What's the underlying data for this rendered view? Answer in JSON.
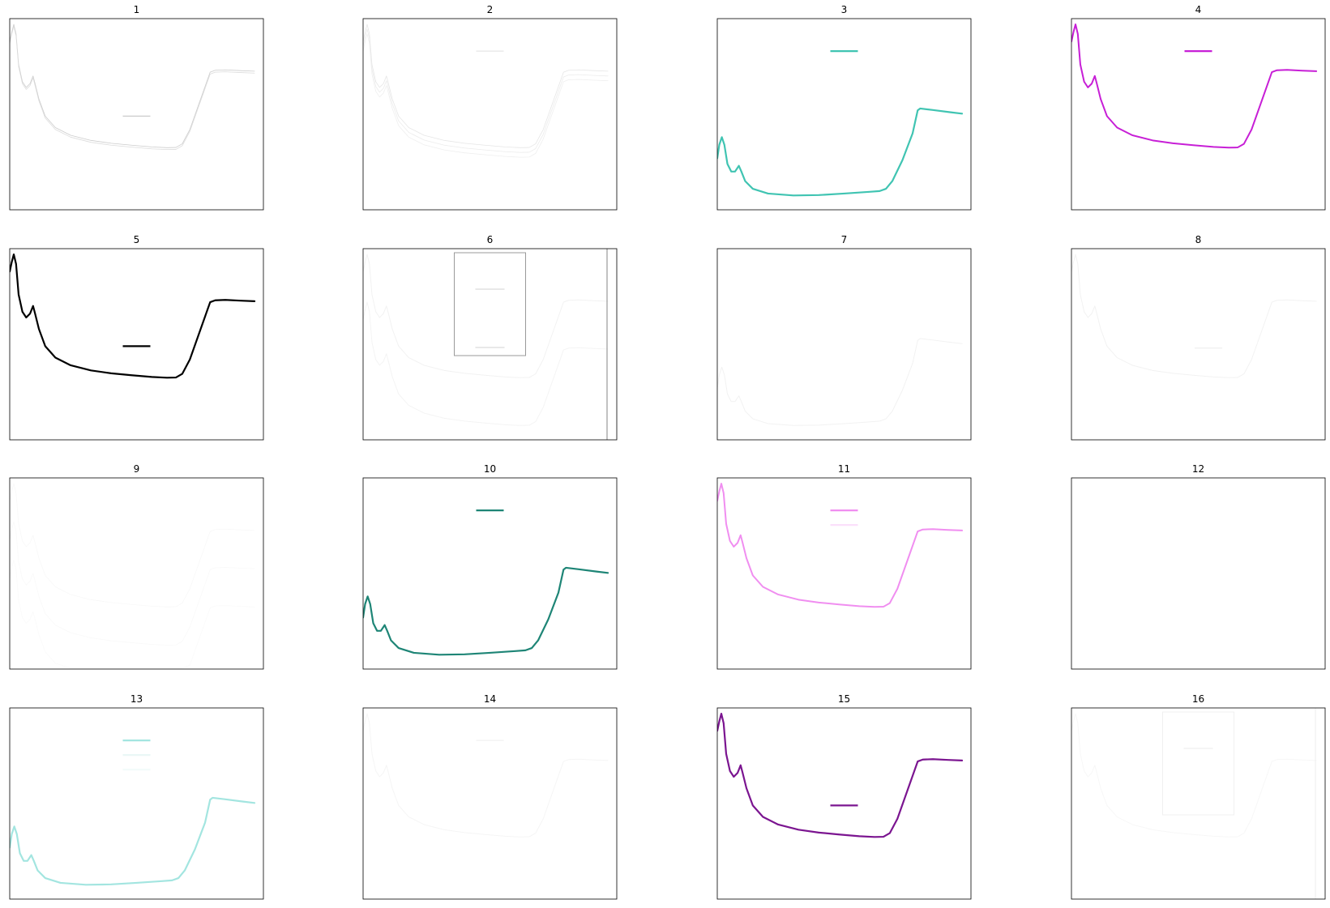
{
  "figure": {
    "layout": "4x4 grid of small-multiple line plots",
    "axes": {
      "ticks": "none",
      "tick_labels": "none"
    }
  },
  "chart_data": [
    {
      "type": "line",
      "title": "1",
      "shape": "A",
      "series": [
        {
          "color": "#cccccc",
          "width": 0.8,
          "offset": 0.0
        },
        {
          "color": "#dcdcdc",
          "width": 0.8,
          "offset": 0.01
        }
      ],
      "legend": {
        "visible": true,
        "position": "center",
        "entries": [
          {
            "color": "#cccccc"
          }
        ]
      }
    },
    {
      "type": "line",
      "title": "2",
      "shape": "A",
      "series": [
        {
          "color": "#e6e6e6",
          "width": 0.8,
          "offset": 0.0
        },
        {
          "color": "#ececec",
          "width": 0.8,
          "offset": 0.025
        },
        {
          "color": "#efefef",
          "width": 0.8,
          "offset": 0.05
        }
      ],
      "legend": {
        "visible": true,
        "position": "upper center",
        "entries": [
          {
            "color": "#e6e6e6"
          }
        ]
      }
    },
    {
      "type": "line",
      "title": "3",
      "shape": "B",
      "series": [
        {
          "color": "#40c4b2",
          "width": 2.2,
          "offset": 0.0
        }
      ],
      "legend": {
        "visible": true,
        "position": "upper center",
        "entries": [
          {
            "color": "#40c4b2"
          }
        ]
      }
    },
    {
      "type": "line",
      "title": "4",
      "shape": "A",
      "series": [
        {
          "color": "#c71fd6",
          "width": 2.0,
          "offset": 0.0
        }
      ],
      "legend": {
        "visible": true,
        "position": "upper center",
        "entries": [
          {
            "color": "#c71fd6"
          }
        ]
      }
    },
    {
      "type": "line",
      "title": "5",
      "shape": "A",
      "series": [
        {
          "color": "#000000",
          "width": 2.2,
          "offset": 0.0
        }
      ],
      "legend": {
        "visible": true,
        "position": "center",
        "entries": [
          {
            "color": "#000000"
          }
        ]
      }
    },
    {
      "type": "line",
      "title": "6",
      "shape": "A",
      "series": [
        {
          "color": "#f2f2f2",
          "width": 1.0,
          "offset": 0.0
        },
        {
          "color": "#f4f4f4",
          "width": 1.0,
          "offset": 0.25
        }
      ],
      "legend": {
        "visible": true,
        "position": "upper center",
        "framed": true,
        "entries": [
          {
            "color": "#e0e0e0"
          },
          {
            "color": "#e0e0e0"
          }
        ]
      },
      "vline": {
        "color": "#999999"
      }
    },
    {
      "type": "line",
      "title": "7",
      "shape": "B",
      "series": [
        {
          "color": "#f2f2f2",
          "width": 1.0,
          "offset": 0.0
        }
      ],
      "legend": {
        "visible": false,
        "entries": []
      }
    },
    {
      "type": "line",
      "title": "8",
      "shape": "A",
      "series": [
        {
          "color": "#f2f2f2",
          "width": 1.0,
          "offset": 0.0
        }
      ],
      "legend": {
        "visible": true,
        "position": "center right",
        "entries": [
          {
            "color": "#efefef"
          }
        ]
      }
    },
    {
      "type": "line",
      "title": "9",
      "shape": "A",
      "series": [
        {
          "color": "#f8f8f8",
          "width": 0.8,
          "offset": 0.0
        },
        {
          "color": "#f9f9f9",
          "width": 0.8,
          "offset": 0.2
        },
        {
          "color": "#fafafa",
          "width": 0.8,
          "offset": 0.4
        }
      ],
      "legend": {
        "visible": false,
        "entries": []
      }
    },
    {
      "type": "line",
      "title": "10",
      "shape": "B",
      "series": [
        {
          "color": "#1e8576",
          "width": 2.2,
          "offset": 0.0
        }
      ],
      "legend": {
        "visible": true,
        "position": "upper center",
        "entries": [
          {
            "color": "#1e8576"
          }
        ]
      }
    },
    {
      "type": "line",
      "title": "11",
      "shape": "A",
      "series": [
        {
          "color": "#f08ef0",
          "width": 2.0,
          "offset": 0.0
        }
      ],
      "legend": {
        "visible": true,
        "position": "upper center",
        "entries": [
          {
            "color": "#f08ef0"
          },
          {
            "color": "#fbe0fb"
          }
        ]
      }
    },
    {
      "type": "line",
      "title": "12",
      "shape": "A",
      "series": [],
      "legend": {
        "visible": false,
        "entries": []
      }
    },
    {
      "type": "line",
      "title": "13",
      "shape": "B",
      "series": [
        {
          "color": "#a3e5e0",
          "width": 2.2,
          "offset": 0.0
        }
      ],
      "legend": {
        "visible": true,
        "position": "upper center",
        "entries": [
          {
            "color": "#a3e5e0"
          },
          {
            "color": "#eaf7f6"
          },
          {
            "color": "#f3fbfa"
          }
        ]
      }
    },
    {
      "type": "line",
      "title": "14",
      "shape": "A",
      "series": [
        {
          "color": "#f5f5f5",
          "width": 1.0,
          "offset": 0.0
        }
      ],
      "legend": {
        "visible": true,
        "position": "upper center",
        "entries": [
          {
            "color": "#f2f2f2"
          }
        ]
      }
    },
    {
      "type": "line",
      "title": "15",
      "shape": "A",
      "series": [
        {
          "color": "#7b1590",
          "width": 2.2,
          "offset": 0.0
        }
      ],
      "legend": {
        "visible": true,
        "position": "center",
        "entries": [
          {
            "color": "#7b1590"
          }
        ]
      }
    },
    {
      "type": "line",
      "title": "16",
      "shape": "A",
      "series": [
        {
          "color": "#f7f7f7",
          "width": 1.0,
          "offset": 0.0
        }
      ],
      "legend": {
        "visible": true,
        "position": "upper center",
        "framed": true,
        "entries": [
          {
            "color": "#f2f2f2"
          }
        ]
      },
      "vline": {
        "color": "#f0f0f0"
      }
    }
  ]
}
